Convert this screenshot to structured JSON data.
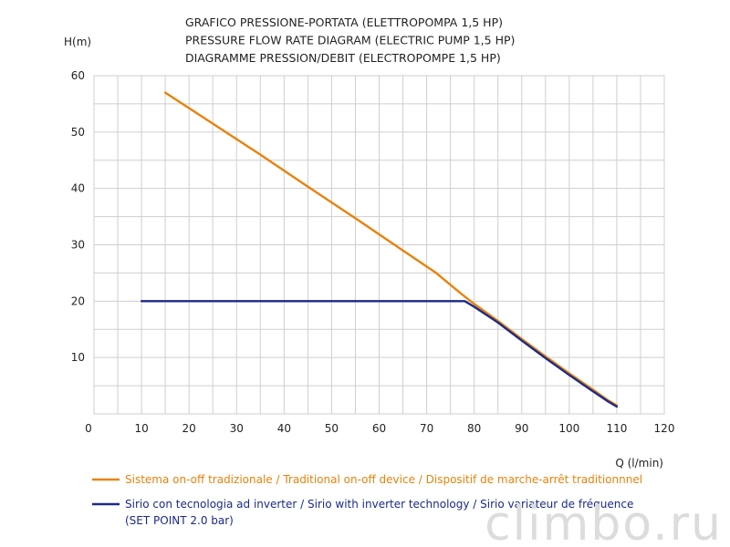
{
  "chart_data": {
    "type": "line",
    "title": [
      "GRAFICO PRESSIONE-PORTATA (ELETTROPOMPA 1,5 HP)",
      "PRESSURE FLOW RATE DIAGRAM (ELECTRIC PUMP 1,5 HP)",
      "DIAGRAMME PRESSION/DEBIT (ELECTROPOMPE 1,5 HP)"
    ],
    "xlabel": "Q (l/min)",
    "ylabel": "H(m)",
    "xlim": [
      0,
      120
    ],
    "ylim": [
      0,
      60
    ],
    "x_ticks": [
      0,
      10,
      20,
      30,
      40,
      50,
      60,
      70,
      80,
      90,
      100,
      110,
      120
    ],
    "y_ticks": [
      10,
      20,
      30,
      40,
      50,
      60
    ],
    "grid": true,
    "legend_position": "bottom",
    "series": [
      {
        "name": "Sistema on-off tradizionale / Traditional on-off device / Dispositif de marche-arrêt traditionnnel",
        "color": "#e8820c",
        "points": [
          [
            15,
            57
          ],
          [
            25,
            51.5
          ],
          [
            35,
            46
          ],
          [
            45,
            40.3
          ],
          [
            55,
            34.7
          ],
          [
            65,
            29
          ],
          [
            72,
            25
          ],
          [
            77,
            21.5
          ],
          [
            80,
            19.5
          ],
          [
            85,
            16.5
          ],
          [
            90,
            13.3
          ],
          [
            95,
            10.2
          ],
          [
            100,
            7.2
          ],
          [
            105,
            4.3
          ],
          [
            108,
            2.5
          ],
          [
            110,
            1.5
          ]
        ]
      },
      {
        "name": "Sirio con tecnologia ad inverter / Sirio with inverter technology / Sirio variateur de fréquence",
        "name_line2": "(SET POINT 2.0 bar)",
        "color": "#1a2a8a",
        "points": [
          [
            10,
            20
          ],
          [
            20,
            20
          ],
          [
            40,
            20
          ],
          [
            60,
            20
          ],
          [
            78,
            20
          ],
          [
            80,
            19
          ],
          [
            85,
            16.2
          ],
          [
            90,
            13
          ],
          [
            95,
            9.9
          ],
          [
            100,
            6.9
          ],
          [
            105,
            4.0
          ],
          [
            108,
            2.3
          ],
          [
            110,
            1.3
          ]
        ]
      }
    ]
  },
  "watermark": "climbo.ru"
}
